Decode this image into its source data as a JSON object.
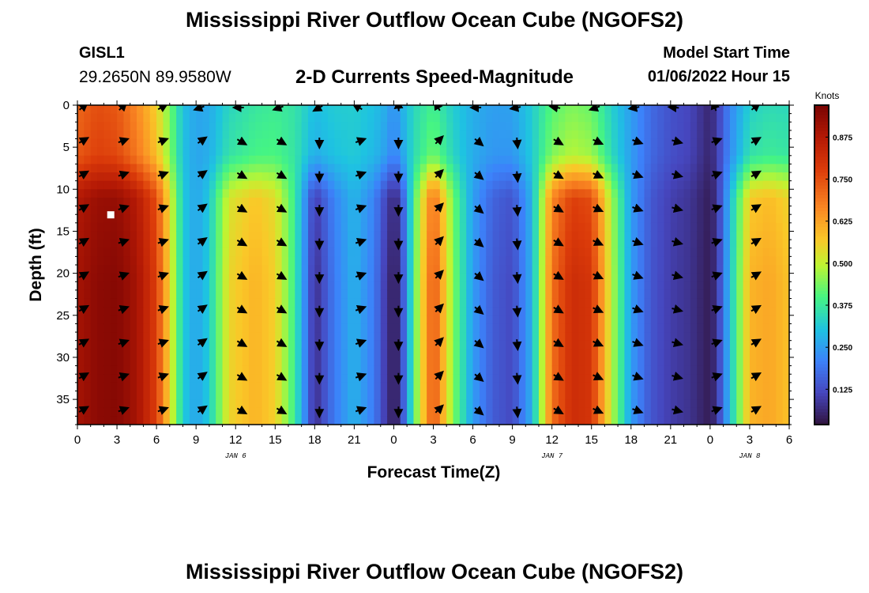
{
  "header": {
    "title": "Mississippi River Outflow Ocean Cube (NGOFS2)",
    "bottom_title": "Mississippi River Outflow Ocean Cube (NGOFS2)",
    "station_id": "GISL1",
    "station_coords": "29.2650N  89.9580W",
    "subtitle": "2-D Currents Speed-Magnitude",
    "start_time_label": "Model Start Time",
    "start_time_value": "01/06/2022 Hour 15"
  },
  "chart_data": {
    "type": "heatmap",
    "title": "2-D Currents Speed-Magnitude",
    "xlabel": "Forecast Time(Z)",
    "ylabel": "Depth (ft)",
    "x_range_hours": [
      0,
      54
    ],
    "y_range_ft": [
      0,
      38
    ],
    "x_tick_labels": [
      "0",
      "3",
      "6",
      "9",
      "12",
      "15",
      "18",
      "21",
      "0",
      "3",
      "6",
      "9",
      "12",
      "15",
      "18",
      "21",
      "0",
      "3",
      "6"
    ],
    "y_ticks": [
      0,
      5,
      10,
      15,
      20,
      25,
      30,
      35
    ],
    "date_labels": [
      {
        "label": "JAN 6",
        "hour": 12
      },
      {
        "label": "JAN 7",
        "hour": 36
      },
      {
        "label": "JAN 8",
        "hour": 51
      }
    ],
    "colorbar": {
      "label": "Knots",
      "range": [
        0.02,
        0.97
      ],
      "ticks": [
        "0.125",
        "0.250",
        "0.375",
        "0.500",
        "0.625",
        "0.750",
        "0.875"
      ],
      "tick_values": [
        0.125,
        0.25,
        0.375,
        0.5,
        0.625,
        0.75,
        0.875
      ]
    },
    "speed_profile": {
      "hours": [
        0,
        1.5,
        3,
        4.5,
        6,
        7,
        8,
        9,
        10,
        11.5,
        13.5,
        15,
        16.5,
        18,
        19.5,
        21,
        22.5,
        23.5,
        24,
        24.5,
        25.5,
        27,
        28.5,
        30,
        31.5,
        33,
        34.5,
        36,
        37.5,
        39,
        40.5,
        42,
        43.5,
        45,
        46.5,
        47.5,
        48,
        48.5,
        49.5,
        51,
        52.5,
        54
      ],
      "surface_knots": [
        0.68,
        0.72,
        0.7,
        0.62,
        0.52,
        0.42,
        0.3,
        0.26,
        0.26,
        0.3,
        0.33,
        0.35,
        0.36,
        0.34,
        0.34,
        0.33,
        0.32,
        0.3,
        0.26,
        0.3,
        0.33,
        0.33,
        0.3,
        0.28,
        0.27,
        0.28,
        0.33,
        0.36,
        0.38,
        0.36,
        0.3,
        0.25,
        0.18,
        0.14,
        0.12,
        0.08,
        0.06,
        0.1,
        0.2,
        0.28,
        0.3,
        0.3
      ],
      "bottom_knots": [
        0.9,
        0.94,
        0.95,
        0.9,
        0.78,
        0.55,
        0.32,
        0.26,
        0.32,
        0.55,
        0.6,
        0.56,
        0.38,
        0.07,
        0.2,
        0.28,
        0.2,
        0.08,
        0.04,
        0.08,
        0.4,
        0.75,
        0.45,
        0.25,
        0.15,
        0.12,
        0.28,
        0.7,
        0.82,
        0.8,
        0.5,
        0.25,
        0.14,
        0.1,
        0.08,
        0.05,
        0.04,
        0.08,
        0.3,
        0.6,
        0.62,
        0.58
      ]
    },
    "vectors": {
      "hours": [
        0,
        3,
        6,
        9,
        12,
        15,
        18,
        21,
        24,
        27,
        30,
        33,
        36,
        39,
        42,
        45,
        48,
        51
      ],
      "depths_ft": [
        0,
        4,
        8,
        12,
        16,
        20,
        24,
        28,
        32,
        36
      ],
      "angle_deg_by_hour": [
        30,
        20,
        20,
        35,
        330,
        330,
        270,
        20,
        270,
        45,
        320,
        275,
        330,
        335,
        340,
        345,
        20,
        30
      ],
      "surface_angle_deg_by_hour": [
        40,
        45,
        30,
        200,
        180,
        200,
        210,
        150,
        95,
        120,
        180,
        190,
        170,
        200,
        190,
        175,
        110,
        40
      ]
    },
    "marker": {
      "hour": 2.5,
      "depth_ft": 13
    }
  }
}
